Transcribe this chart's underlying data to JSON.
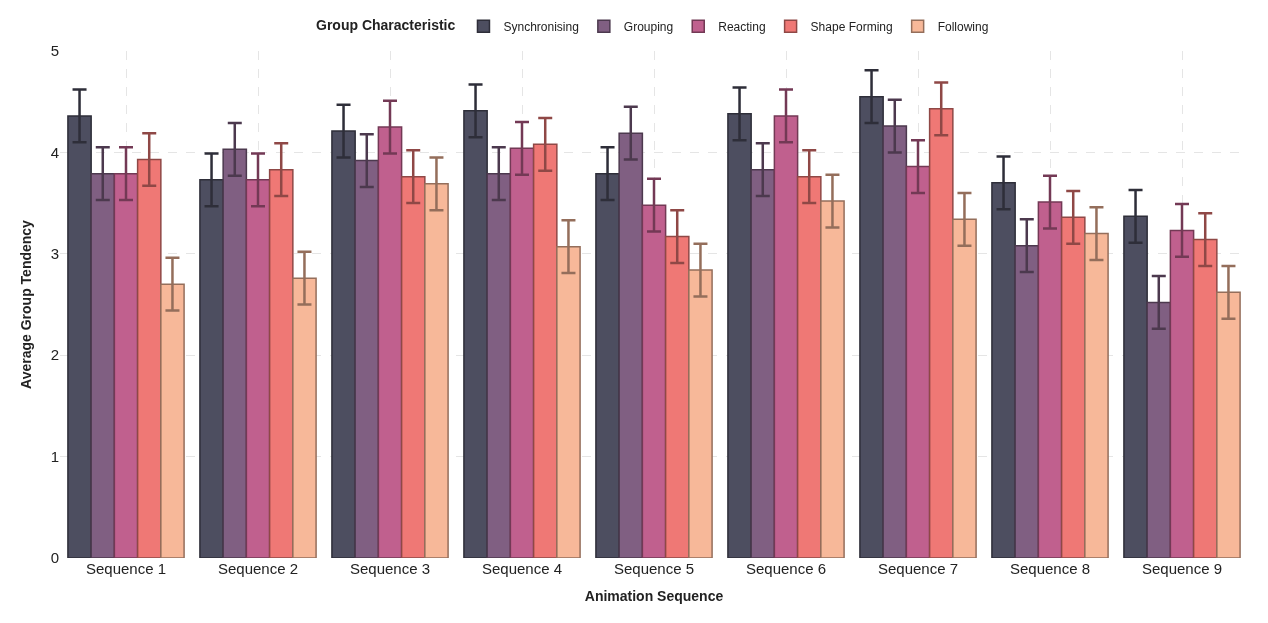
{
  "chart_data": {
    "type": "bar",
    "xlabel": "Animation Sequence",
    "ylabel": "Average Group Tendency",
    "legend_title": "Group Characteristic",
    "legend": "top",
    "categories": [
      "Sequence 1",
      "Sequence 2",
      "Sequence 3",
      "Sequence 4",
      "Sequence 5",
      "Sequence 6",
      "Sequence 7",
      "Sequence 8",
      "Sequence 9"
    ],
    "series": [
      {
        "name": "Synchronising",
        "color": "#4d4e60",
        "values": [
          4.36,
          3.73,
          4.21,
          4.41,
          3.79,
          4.38,
          4.55,
          3.7,
          3.37
        ],
        "errors": [
          0.26,
          0.26,
          0.26,
          0.26,
          0.26,
          0.26,
          0.26,
          0.26,
          0.26
        ]
      },
      {
        "name": "Grouping",
        "color": "#805f82",
        "values": [
          3.79,
          4.03,
          3.92,
          3.79,
          4.19,
          3.83,
          4.26,
          3.08,
          2.52
        ],
        "errors": [
          0.26,
          0.26,
          0.26,
          0.26,
          0.26,
          0.26,
          0.26,
          0.26,
          0.26
        ]
      },
      {
        "name": "Reacting",
        "color": "#c0608e",
        "values": [
          3.79,
          3.73,
          4.25,
          4.04,
          3.48,
          4.36,
          3.86,
          3.51,
          3.23
        ],
        "errors": [
          0.26,
          0.26,
          0.26,
          0.26,
          0.26,
          0.26,
          0.26,
          0.26,
          0.26
        ]
      },
      {
        "name": "Shape Forming",
        "color": "#ef7875",
        "values": [
          3.93,
          3.83,
          3.76,
          4.08,
          3.17,
          3.76,
          4.43,
          3.36,
          3.14
        ],
        "errors": [
          0.26,
          0.26,
          0.26,
          0.26,
          0.26,
          0.26,
          0.26,
          0.26,
          0.26
        ]
      },
      {
        "name": "Following",
        "color": "#f7b899",
        "values": [
          2.7,
          2.76,
          3.69,
          3.07,
          2.84,
          3.52,
          3.34,
          3.2,
          2.62
        ],
        "errors": [
          0.26,
          0.26,
          0.26,
          0.26,
          0.26,
          0.26,
          0.26,
          0.26,
          0.26
        ]
      }
    ],
    "ylim": [
      0,
      5
    ],
    "yticks": [
      0,
      1,
      2,
      3,
      4,
      5
    ],
    "grid": true
  }
}
